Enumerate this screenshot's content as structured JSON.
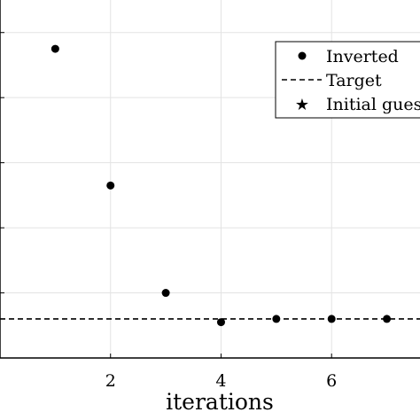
{
  "chart_data": {
    "type": "scatter",
    "xlabel": "iterations",
    "ylabel": "",
    "xlim": [
      0,
      7.6
    ],
    "ylim": [
      0,
      1.1
    ],
    "xticks": [
      0,
      2,
      4,
      6
    ],
    "xtick_labels": [
      "",
      "2",
      "4",
      "6"
    ],
    "yticks": [
      0.2,
      0.4,
      0.6,
      0.8,
      1.0
    ],
    "grid": true,
    "legend_position": "top-right",
    "series": [
      {
        "name": "Inverted",
        "marker": "circle",
        "color": "#000000",
        "x": [
          1,
          2,
          3,
          4,
          5,
          6,
          7
        ],
        "y": [
          0.95,
          0.53,
          0.2,
          0.11,
          0.12,
          0.12,
          0.12
        ]
      },
      {
        "name": "Target",
        "kind": "dashed-line",
        "color": "#000000",
        "y": 0.12
      },
      {
        "name": "Initial gues",
        "marker": "star",
        "color": "#000000",
        "x": [],
        "y": []
      }
    ]
  }
}
